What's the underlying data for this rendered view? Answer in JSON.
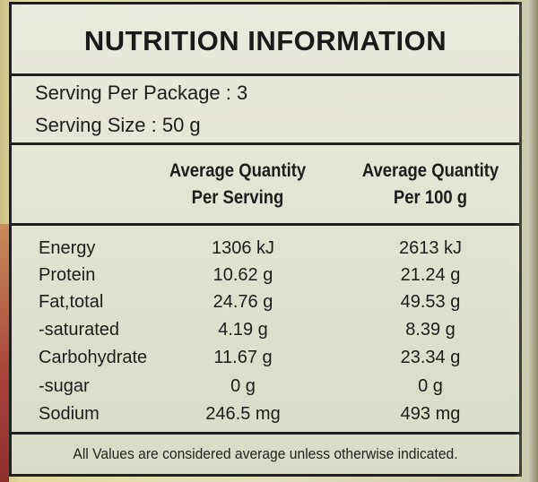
{
  "title": "NUTRITION INFORMATION",
  "serving": {
    "per_package": "Serving Per Package : 3",
    "size": "Serving Size : 50 g"
  },
  "columns": {
    "per_serving_line1": "Average Quantity",
    "per_serving_line2": "Per Serving",
    "per_100g_line1": "Average Quantity",
    "per_100g_line2": "Per 100 g"
  },
  "rows": [
    {
      "name": "Energy",
      "per_serving": "1306 kJ",
      "per_100g": "2613 kJ"
    },
    {
      "name": "Protein",
      "per_serving": "10.62 g",
      "per_100g": "21.24 g"
    },
    {
      "name": "Fat,total",
      "per_serving": "24.76 g",
      "per_100g": "49.53 g"
    },
    {
      "name": "-saturated",
      "per_serving": "4.19 g",
      "per_100g": "8.39 g"
    },
    {
      "name": "Carbohydrate",
      "per_serving": "11.67 g",
      "per_100g": "23.34 g"
    },
    {
      "name": "-sugar",
      "per_serving": "0 g",
      "per_100g": "0 g"
    },
    {
      "name": "Sodium",
      "per_serving": "246.5 mg",
      "per_100g": "493 mg"
    }
  ],
  "footer": "All Values are considered average unless otherwise indicated."
}
